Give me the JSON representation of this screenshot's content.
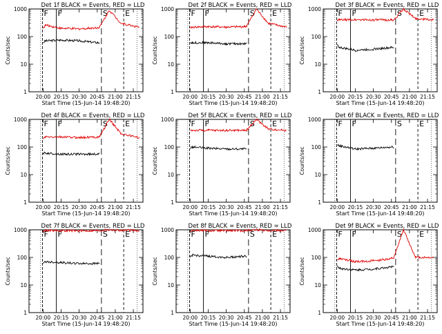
{
  "figure": {
    "xlabel": "Start Time (15-Jun-14 19:48:20)",
    "ylabel": "Counts/sec",
    "xticks": [
      "20:00",
      "20:15",
      "20:30",
      "20:45",
      "21:00",
      "21:15"
    ],
    "yticks": [
      "1",
      "10",
      "100",
      "1000"
    ],
    "colors": {
      "events": "#000000",
      "lld": "#e00000",
      "marker": "#000000"
    }
  },
  "chart_data": [
    {
      "type": "line",
      "title": "Det 1f BLACK = Events, RED = LLD",
      "markers": [
        "F",
        "F",
        "S",
        "E"
      ],
      "ylim": [
        1,
        1000
      ],
      "yscale": "log",
      "xrange": [
        "19:48:20",
        "21:23"
      ],
      "series": [
        {
          "x": [
            "20:00",
            "20:02",
            "20:15",
            "20:30",
            "20:45",
            "20:47"
          ],
          "y": [
            60,
            70,
            75,
            70,
            60,
            60
          ]
        },
        {
          "x": [
            "20:00",
            "20:02",
            "20:15",
            "20:30",
            "20:45",
            "20:47",
            "20:55",
            "21:05",
            "21:20"
          ],
          "y": [
            200,
            260,
            200,
            190,
            210,
            220,
            900,
            300,
            220
          ]
        }
      ]
    },
    {
      "type": "line",
      "title": "Det 2f BLACK = Events, RED = LLD",
      "markers": [
        "F",
        "F",
        "S",
        "E"
      ],
      "ylim": [
        1,
        1000
      ],
      "yscale": "log",
      "xrange": [
        "19:48:20",
        "21:23"
      ],
      "series": [
        {
          "x": [
            "20:00",
            "20:02",
            "20:15",
            "20:30",
            "20:45",
            "20:47"
          ],
          "y": [
            60,
            60,
            60,
            55,
            55,
            55
          ]
        },
        {
          "x": [
            "20:00",
            "20:02",
            "20:15",
            "20:30",
            "20:45",
            "20:47",
            "20:55",
            "21:05",
            "21:20"
          ],
          "y": [
            200,
            220,
            230,
            220,
            230,
            240,
            1000,
            300,
            220
          ]
        }
      ]
    },
    {
      "type": "line",
      "title": "Det 3f BLACK = Events, RED = LLD",
      "markers": [
        "F",
        "F",
        "S",
        "E"
      ],
      "ylim": [
        1,
        1000
      ],
      "yscale": "log",
      "xrange": [
        "19:48:20",
        "21:23"
      ],
      "series": [
        {
          "x": [
            "20:00",
            "20:02",
            "20:15",
            "20:30",
            "20:45",
            "20:47"
          ],
          "y": [
            50,
            40,
            32,
            35,
            40,
            40
          ]
        },
        {
          "x": [
            "20:00",
            "20:02",
            "20:15",
            "20:30",
            "20:45",
            "20:47",
            "20:55",
            "21:05",
            "21:20"
          ],
          "y": [
            400,
            400,
            410,
            400,
            400,
            400,
            1000,
            450,
            400
          ]
        }
      ]
    },
    {
      "type": "line",
      "title": "Det 4f BLACK = Events, RED = LLD",
      "markers": [
        "F",
        "F",
        "S",
        "E"
      ],
      "ylim": [
        1,
        1000
      ],
      "yscale": "log",
      "xrange": [
        "19:48:20",
        "21:23"
      ],
      "series": [
        {
          "x": [
            "20:00",
            "20:02",
            "20:15",
            "20:30",
            "20:45",
            "20:47"
          ],
          "y": [
            60,
            60,
            55,
            55,
            55,
            55
          ]
        },
        {
          "x": [
            "20:00",
            "20:02",
            "20:15",
            "20:30",
            "20:45",
            "20:47",
            "20:55",
            "21:05",
            "21:20"
          ],
          "y": [
            200,
            230,
            230,
            220,
            230,
            240,
            1000,
            300,
            220
          ]
        }
      ]
    },
    {
      "type": "line",
      "title": "Det 5f BLACK = Events, RED = LLD",
      "markers": [
        "F",
        "F",
        "S",
        "E"
      ],
      "ylim": [
        1,
        1000
      ],
      "yscale": "log",
      "xrange": [
        "19:48:20",
        "21:23"
      ],
      "series": [
        {
          "x": [
            "20:00",
            "20:02",
            "20:15",
            "20:30",
            "20:45",
            "20:47"
          ],
          "y": [
            90,
            100,
            90,
            85,
            85,
            85
          ]
        },
        {
          "x": [
            "20:00",
            "20:02",
            "20:15",
            "20:30",
            "20:45",
            "20:47",
            "20:55",
            "21:05",
            "21:20"
          ],
          "y": [
            400,
            400,
            400,
            400,
            400,
            410,
            1000,
            450,
            400
          ]
        }
      ]
    },
    {
      "type": "line",
      "title": "Det 6f BLACK = Events, RED = LLD",
      "markers": [
        "F",
        "F",
        "S",
        "E"
      ],
      "ylim": [
        1,
        1000
      ],
      "yscale": "log",
      "xrange": [
        "19:48:20",
        "21:23"
      ],
      "series": [
        {
          "x": [
            "20:00",
            "20:02",
            "20:15",
            "20:30",
            "20:45",
            "20:47"
          ],
          "y": [
            120,
            110,
            85,
            90,
            100,
            100
          ]
        }
      ]
    },
    {
      "type": "line",
      "title": "Det 7f BLACK = Events, RED = LLD",
      "markers": [
        "F",
        "F",
        "S",
        "E"
      ],
      "ylim": [
        1,
        1000
      ],
      "yscale": "log",
      "xrange": [
        "19:48:20",
        "21:23"
      ],
      "series": [
        {
          "x": [
            "20:00",
            "20:02",
            "20:15",
            "20:30",
            "20:45",
            "20:47"
          ],
          "y": [
            60,
            70,
            65,
            60,
            60,
            60
          ]
        },
        {
          "x": [
            "20:00",
            "20:02",
            "20:15",
            "20:30",
            "20:45",
            "20:47",
            "20:55",
            "21:05",
            "21:20"
          ],
          "y": [
            900,
            950,
            930,
            920,
            930,
            940,
            1000,
            950,
            950
          ]
        }
      ]
    },
    {
      "type": "line",
      "title": "Det 8f BLACK = Events, RED = LLD",
      "markers": [
        "F",
        "F",
        "S",
        "E"
      ],
      "ylim": [
        1,
        1000
      ],
      "yscale": "log",
      "xrange": [
        "19:48:20",
        "21:23"
      ],
      "series": [
        {
          "x": [
            "20:00",
            "20:02",
            "20:15",
            "20:30",
            "20:45",
            "20:47"
          ],
          "y": [
            100,
            120,
            110,
            100,
            110,
            110
          ]
        },
        {
          "x": [
            "20:00",
            "20:02",
            "20:15",
            "20:30",
            "20:45",
            "20:47",
            "20:55",
            "21:05",
            "21:20"
          ],
          "y": [
            900,
            950,
            930,
            920,
            930,
            940,
            1000,
            950,
            950
          ]
        }
      ]
    },
    {
      "type": "line",
      "title": "Det 9f BLACK = Events, RED = LLD",
      "markers": [
        "F",
        "F",
        "S",
        "E"
      ],
      "ylim": [
        1,
        1000
      ],
      "yscale": "log",
      "xrange": [
        "19:48:20",
        "21:23"
      ],
      "series": [
        {
          "x": [
            "20:00",
            "20:02",
            "20:15",
            "20:30",
            "20:45",
            "20:47"
          ],
          "y": [
            50,
            40,
            35,
            38,
            45,
            45
          ]
        },
        {
          "x": [
            "20:00",
            "20:02",
            "20:15",
            "20:30",
            "20:45",
            "20:47",
            "20:55",
            "21:05",
            "21:20"
          ],
          "y": [
            80,
            90,
            70,
            75,
            90,
            95,
            1000,
            100,
            100
          ]
        }
      ]
    }
  ]
}
